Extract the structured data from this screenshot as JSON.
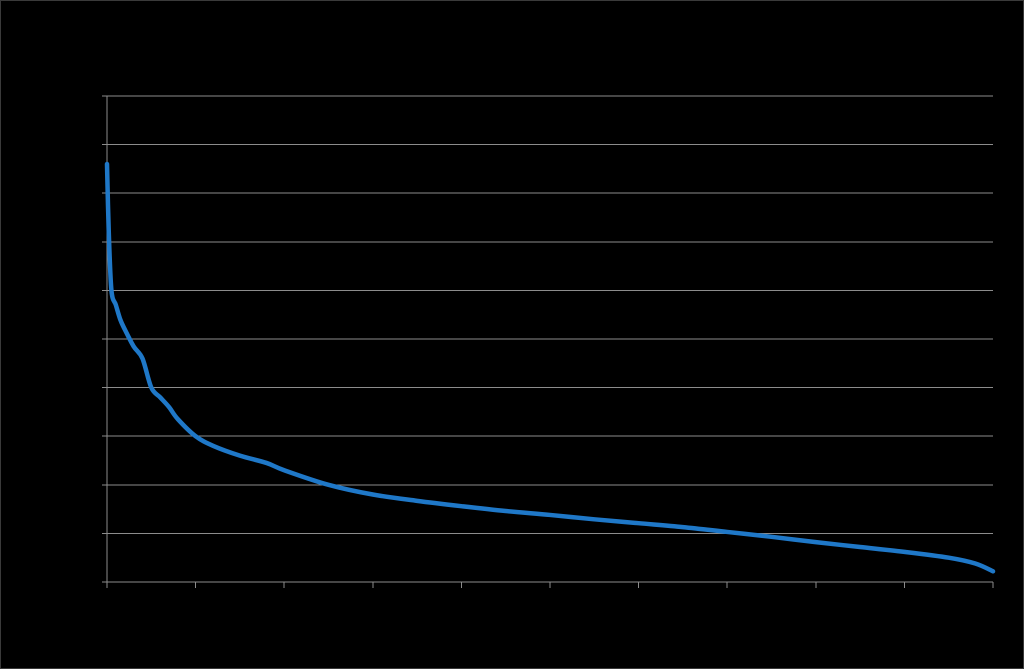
{
  "chart_data": {
    "type": "line",
    "title": "",
    "xlabel": "",
    "ylabel": "",
    "xlim": [
      0,
      10
    ],
    "ylim": [
      0,
      10
    ],
    "x_ticks": [
      0,
      1,
      2,
      3,
      4,
      5,
      6,
      7,
      8,
      9,
      10
    ],
    "y_ticks": [
      0,
      1,
      2,
      3,
      4,
      5,
      6,
      7,
      8,
      9,
      10
    ],
    "horizontal_grid": true,
    "vertical_grid": false,
    "legend": "none",
    "series": [
      {
        "color": "#1f78c8",
        "x": [
          0.0,
          0.02,
          0.05,
          0.1,
          0.15,
          0.2,
          0.3,
          0.4,
          0.5,
          0.6,
          0.7,
          0.8,
          1.0,
          1.2,
          1.5,
          1.8,
          2.0,
          2.5,
          3.0,
          3.5,
          4.0,
          4.5,
          5.0,
          5.5,
          6.0,
          6.5,
          7.0,
          7.5,
          8.0,
          8.5,
          9.0,
          9.5,
          9.8,
          10.0
        ],
        "y": [
          8.6,
          7.2,
          6.0,
          5.7,
          5.4,
          5.2,
          4.85,
          4.6,
          4.0,
          3.8,
          3.6,
          3.35,
          3.0,
          2.8,
          2.6,
          2.45,
          2.3,
          2.0,
          1.8,
          1.67,
          1.56,
          1.46,
          1.38,
          1.29,
          1.21,
          1.13,
          1.03,
          0.93,
          0.82,
          0.72,
          0.62,
          0.5,
          0.38,
          0.22
        ]
      }
    ]
  }
}
